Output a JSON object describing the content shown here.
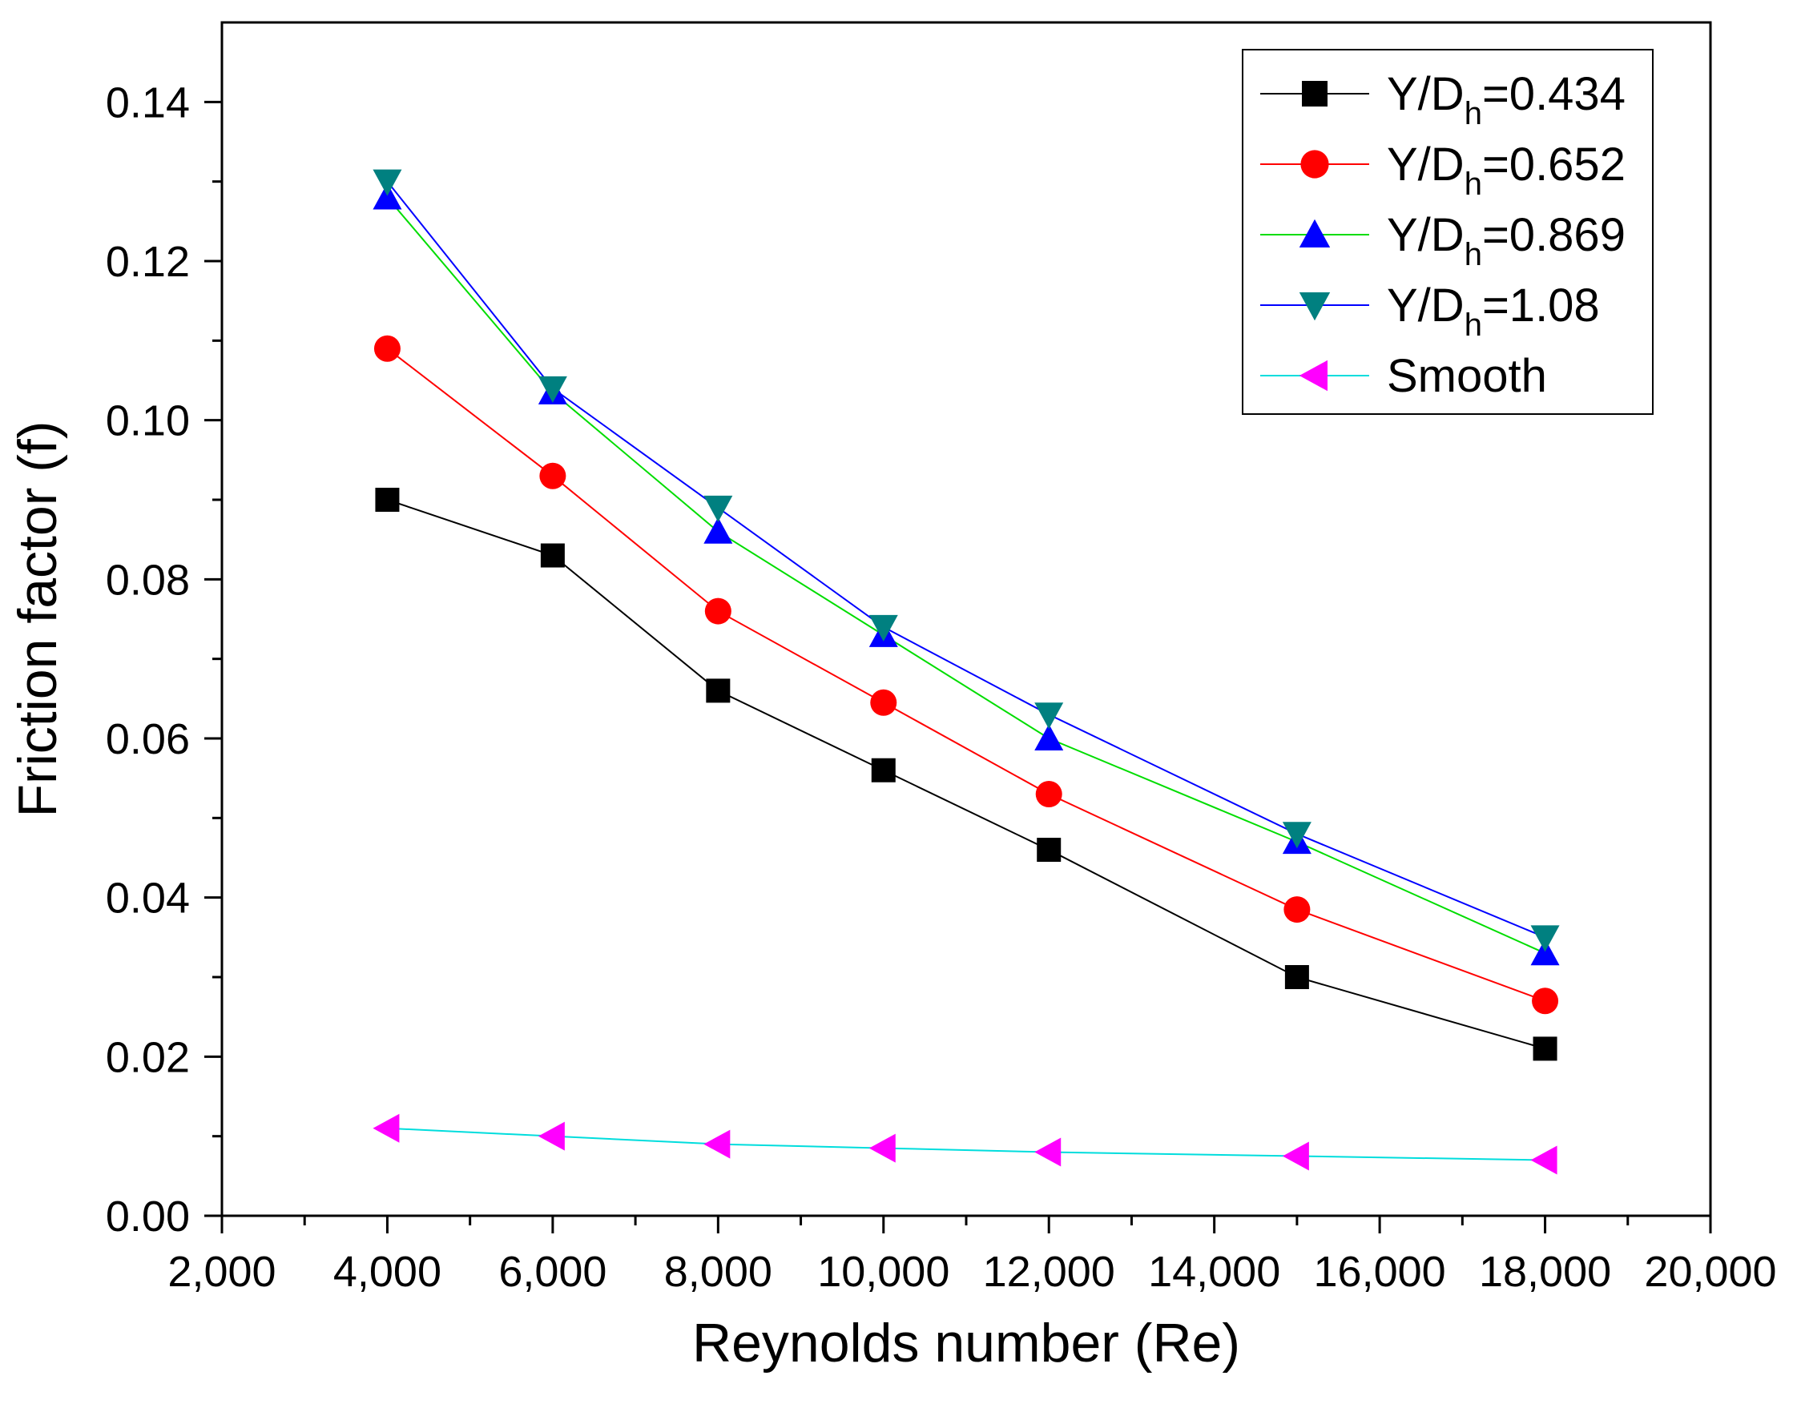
{
  "chart_data": {
    "type": "line",
    "title": "",
    "xlabel": "Reynolds number (Re)",
    "ylabel": "Friction factor (f)",
    "xlim": [
      2000,
      20000
    ],
    "ylim": [
      0,
      0.15
    ],
    "x": [
      4000,
      6000,
      8000,
      10000,
      12000,
      15000,
      18000
    ],
    "x_ticks": [
      2000,
      4000,
      6000,
      8000,
      10000,
      12000,
      14000,
      16000,
      18000,
      20000
    ],
    "x_tick_labels": [
      "2,000",
      "4,000",
      "6,000",
      "8,000",
      "10,000",
      "12,000",
      "14,000",
      "16,000",
      "18,000",
      "20,000"
    ],
    "y_ticks": [
      0,
      0.02,
      0.04,
      0.06,
      0.08,
      0.1,
      0.12,
      0.14
    ],
    "y_tick_labels": [
      "0.00",
      "0.02",
      "0.04",
      "0.06",
      "0.08",
      "0.10",
      "0.12",
      "0.14"
    ],
    "grid": false,
    "legend_position": "top-right",
    "series": [
      {
        "name": "Y/D_h=0.434",
        "label_main": "Y/D",
        "label_sub": "h",
        "label_tail": "=0.434",
        "marker": "square",
        "marker_color": "#000000",
        "line_color": "#000000",
        "values": [
          0.09,
          0.083,
          0.066,
          0.056,
          0.046,
          0.03,
          0.021
        ]
      },
      {
        "name": "Y/D_h=0.652",
        "label_main": "Y/D",
        "label_sub": "h",
        "label_tail": "=0.652",
        "marker": "circle",
        "marker_color": "#ff0000",
        "line_color": "#ff0000",
        "values": [
          0.109,
          0.093,
          0.076,
          0.0645,
          0.053,
          0.0385,
          0.027
        ]
      },
      {
        "name": "Y/D_h=0.869",
        "label_main": "Y/D",
        "label_sub": "h",
        "label_tail": "=0.869",
        "marker": "triangle-up",
        "marker_color": "#0000ff",
        "line_color": "#00dd00",
        "values": [
          0.128,
          0.1035,
          0.086,
          0.073,
          0.06,
          0.047,
          0.033
        ]
      },
      {
        "name": "Y/D_h=1.08",
        "label_main": "Y/D",
        "label_sub": "h",
        "label_tail": "=1.08",
        "marker": "triangle-down",
        "marker_color": "#008080",
        "line_color": "#0000ff",
        "values": [
          0.13,
          0.104,
          0.089,
          0.074,
          0.063,
          0.048,
          0.035
        ]
      },
      {
        "name": "Smooth",
        "label_main": "Smooth",
        "label_sub": "",
        "label_tail": "",
        "marker": "triangle-left",
        "marker_color": "#ff00ff",
        "line_color": "#00dddd",
        "values": [
          0.011,
          0.01,
          0.009,
          0.0085,
          0.008,
          0.0075,
          0.007
        ]
      }
    ]
  }
}
